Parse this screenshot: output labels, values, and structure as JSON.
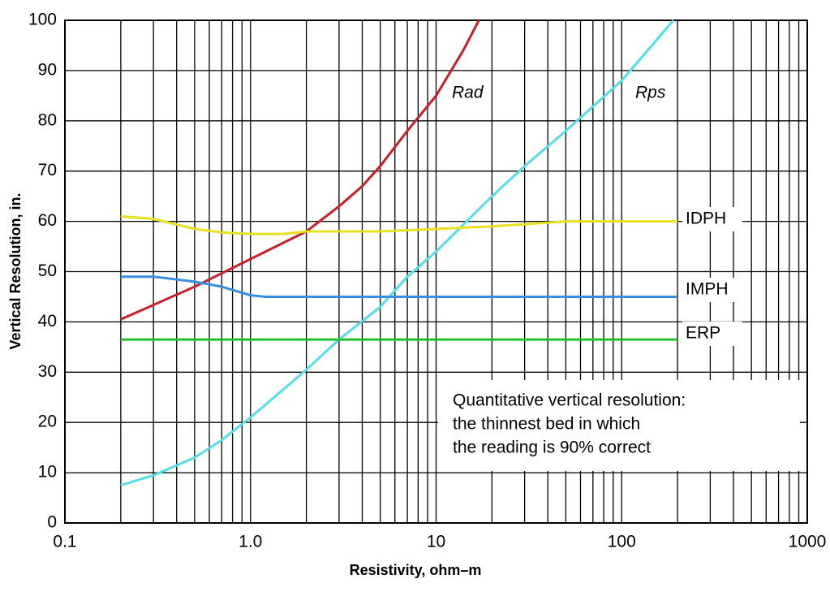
{
  "chart_data": {
    "type": "line",
    "xlabel": "Resistivity, ohm–m",
    "ylabel": "Vertical Resolution, in.",
    "xscale": "log",
    "xlim": [
      0.1,
      1000
    ],
    "ylim": [
      0,
      100
    ],
    "xticks": [
      0.1,
      {
        "value": 1,
        "label": "1.0"
      },
      10,
      100,
      1000
    ],
    "xminorticks": [
      0.2,
      0.3,
      0.4,
      0.5,
      0.6,
      0.7,
      0.8,
      0.9,
      2,
      3,
      4,
      5,
      6,
      7,
      8,
      9,
      20,
      30,
      40,
      50,
      60,
      70,
      80,
      90,
      200,
      300,
      400,
      500,
      600,
      700,
      800,
      900
    ],
    "yticks": [
      0,
      10,
      20,
      30,
      40,
      50,
      60,
      70,
      80,
      90,
      100
    ],
    "grid": true,
    "series": [
      {
        "name": "Rad",
        "color": "#c8202a",
        "x": [
          0.2,
          0.5,
          1,
          2,
          3,
          4,
          5,
          7,
          10,
          14,
          17
        ],
        "values": [
          40.5,
          47,
          52.5,
          58,
          63,
          67,
          71,
          78,
          85,
          94,
          100
        ]
      },
      {
        "name": "Rps",
        "color": "#55dde8",
        "x": [
          0.2,
          0.3,
          0.5,
          0.7,
          1,
          2,
          3,
          5,
          7,
          10,
          20,
          30,
          50,
          100,
          190
        ],
        "values": [
          7.5,
          9.5,
          13,
          16.5,
          21,
          30.5,
          36.5,
          43,
          49,
          54,
          65,
          71,
          78,
          88,
          100
        ]
      },
      {
        "name": "IDPH",
        "color": "#e8e020",
        "x": [
          0.2,
          0.3,
          0.5,
          0.7,
          1,
          1.5,
          2,
          5,
          10,
          20,
          50,
          100,
          200
        ],
        "values": [
          61,
          60.5,
          58.5,
          57.8,
          57.5,
          57.5,
          58,
          58,
          58.5,
          59,
          60,
          60,
          60
        ]
      },
      {
        "name": "IMPH",
        "color": "#3a8ee0",
        "x": [
          0.2,
          0.3,
          0.5,
          0.7,
          1,
          1.2,
          200
        ],
        "values": [
          49,
          49,
          48,
          47,
          45.3,
          45,
          45
        ]
      },
      {
        "name": "ERP",
        "color": "#22c02a",
        "x": [
          0.2,
          200
        ],
        "values": [
          36.5,
          36.5
        ]
      }
    ],
    "annotation": [
      "Quantitative vertical resolution:",
      "the thinnest bed in which",
      "the reading is 90% correct"
    ]
  }
}
